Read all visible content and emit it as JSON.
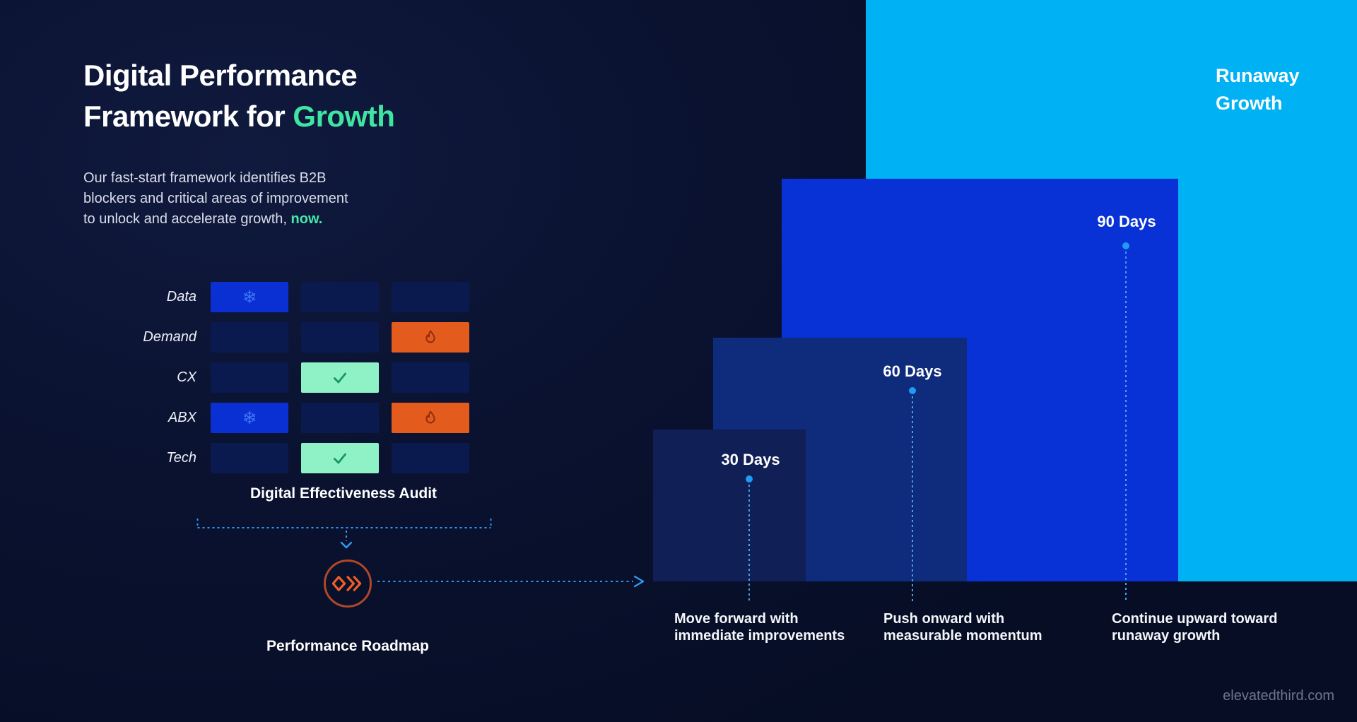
{
  "header": {
    "title_line1": "Digital Performance",
    "title_line2": "Framework for",
    "title_accent": "Growth",
    "intro_line1": "Our fast-start framework identifies B2B",
    "intro_line2": "blockers and critical areas of improvement",
    "intro_line3": "to unlock and accelerate growth,",
    "intro_accent": "now."
  },
  "audit": {
    "caption": "Digital Effectiveness Audit",
    "rows": [
      {
        "label": "Data",
        "cells": [
          "frozen",
          "empty",
          "empty"
        ]
      },
      {
        "label": "Demand",
        "cells": [
          "empty",
          "empty",
          "hot"
        ]
      },
      {
        "label": "CX",
        "cells": [
          "empty",
          "good",
          "empty"
        ]
      },
      {
        "label": "ABX",
        "cells": [
          "frozen",
          "empty",
          "hot"
        ]
      },
      {
        "label": "Tech",
        "cells": [
          "empty",
          "good",
          "empty"
        ]
      }
    ],
    "icons": {
      "frozen": "snowflake-icon",
      "hot": "flame-icon",
      "good": "check-icon"
    }
  },
  "roadmap": {
    "label": "Performance Roadmap",
    "logo_icon": "elevated-third-logo"
  },
  "timeline": {
    "milestones": [
      {
        "label": "30 Days",
        "desc_line1": "Move forward with",
        "desc_line2": "immediate improvements"
      },
      {
        "label": "60 Days",
        "desc_line1": "Push onward with",
        "desc_line2": "measurable momentum"
      },
      {
        "label": "90 Days",
        "desc_line1": "Continue upward toward",
        "desc_line2": "runaway growth"
      }
    ],
    "runaway_line1": "Runaway",
    "runaway_line2": "Growth"
  },
  "footer": {
    "website": "elevatedthird.com"
  },
  "colors": {
    "background": "#0a1230",
    "accent_mint": "#3fe5a3",
    "bar_30": "#101f55",
    "bar_60": "#0e2b7c",
    "bar_90": "#0831d6",
    "bar_runaway": "#00b1f4",
    "cell_empty": "#0a1a4e",
    "cell_frozen": "#0a2fd2",
    "cell_hot": "#e35c1d",
    "cell_good": "#8ef2c6",
    "dotted_blue": "#2d9cf4",
    "dot_blue": "#1e9bf4",
    "logo_orange": "#f05f23",
    "ring_rust": "#b04726"
  }
}
